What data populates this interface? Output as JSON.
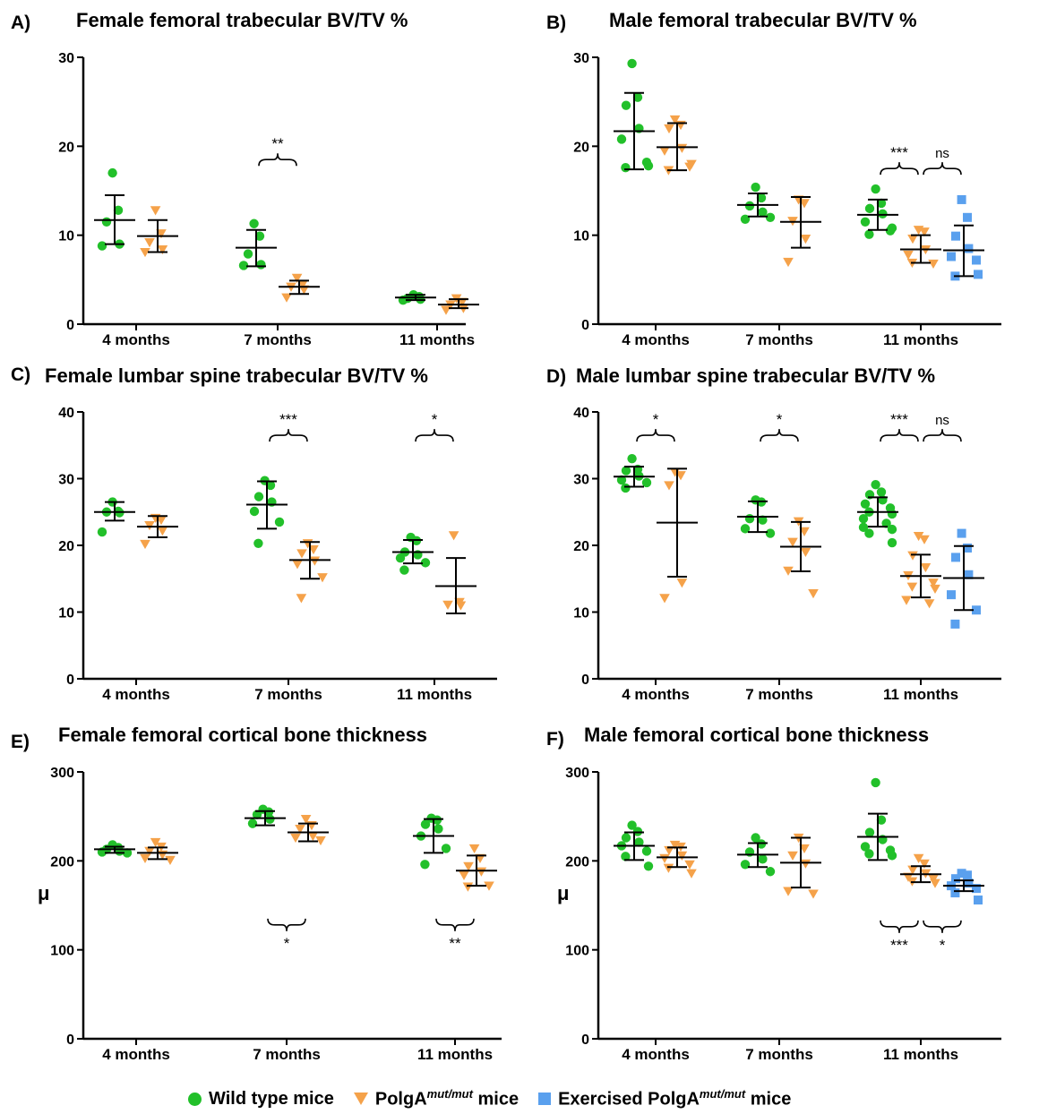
{
  "colors": {
    "wild_type": "#22c02a",
    "polga": "#f5a24a",
    "exercised": "#5aa0ee"
  },
  "legend": {
    "items": [
      {
        "key": "wild_type",
        "marker": "circle",
        "label_a": "Wild type mice",
        "sup": "",
        "label_b": ""
      },
      {
        "key": "polga",
        "marker": "triangle",
        "label_a": "PolgA",
        "sup": "mut/mut",
        "label_b": " mice"
      },
      {
        "key": "exercised",
        "marker": "square",
        "label_a": "Exercised PolgA",
        "sup": "mut/mut",
        "label_b": " mice"
      }
    ]
  },
  "chart_data": [
    {
      "panel": "A)",
      "type": "scatter",
      "title": "Female femoral trabecular BV/TV %",
      "ylabel": "",
      "ylim": [
        0,
        30
      ],
      "yticks": [
        0,
        10,
        20,
        30
      ],
      "categories": [
        "4 months",
        "7 months",
        "11 months"
      ],
      "groups": [
        {
          "category": 0,
          "series": "wild_type",
          "mean": 11.7,
          "sd": [
            9.0,
            14.5
          ],
          "points": [
            17.0,
            12.8,
            11.5,
            9.0,
            8.8
          ]
        },
        {
          "category": 0,
          "series": "polga",
          "mean": 9.9,
          "sd": [
            8.1,
            11.7
          ],
          "points": [
            12.8,
            10.2,
            9.2,
            8.4,
            8.1
          ]
        },
        {
          "category": 1,
          "series": "wild_type",
          "mean": 8.6,
          "sd": [
            6.5,
            10.6
          ],
          "points": [
            11.3,
            9.9,
            7.9,
            6.7,
            6.6
          ]
        },
        {
          "category": 1,
          "series": "polga",
          "mean": 4.2,
          "sd": [
            3.4,
            4.9
          ],
          "points": [
            5.2,
            4.5,
            4.2,
            3.9,
            3.0
          ]
        },
        {
          "category": 2,
          "series": "wild_type",
          "mean": 3.0,
          "sd": [
            2.7,
            3.3
          ],
          "points": [
            3.3,
            3.1,
            2.9,
            2.8,
            2.7
          ]
        },
        {
          "category": 2,
          "series": "polga",
          "mean": 2.2,
          "sd": [
            1.8,
            2.8
          ],
          "points": [
            2.9,
            2.5,
            2.2,
            1.8,
            1.6
          ]
        }
      ],
      "significance": [
        {
          "from": "7 months|wild_type",
          "to": "7 months|polga",
          "label": "**",
          "y": 18.5,
          "position": "above"
        }
      ]
    },
    {
      "panel": "B)",
      "type": "scatter",
      "title": "Male femoral trabecular BV/TV %",
      "ylabel": "",
      "ylim": [
        0,
        30
      ],
      "yticks": [
        0,
        10,
        20,
        30
      ],
      "categories": [
        "4 months",
        "7 months",
        "11 months"
      ],
      "groups": [
        {
          "category": 0,
          "series": "wild_type",
          "mean": 21.7,
          "sd": [
            17.4,
            26.0
          ],
          "points": [
            29.3,
            25.5,
            24.6,
            22.0,
            20.8,
            18.2,
            17.6,
            17.8
          ]
        },
        {
          "category": 0,
          "series": "polga",
          "mean": 19.9,
          "sd": [
            17.3,
            22.6
          ],
          "points": [
            23.0,
            22.4,
            22.0,
            19.8,
            19.5,
            17.7,
            17.3,
            18.0
          ]
        },
        {
          "category": 1,
          "series": "wild_type",
          "mean": 13.4,
          "sd": [
            12.1,
            14.7
          ],
          "points": [
            15.4,
            14.2,
            13.3,
            12.6,
            11.8,
            12.0
          ]
        },
        {
          "category": 1,
          "series": "polga",
          "mean": 11.5,
          "sd": [
            8.6,
            14.3
          ],
          "points": [
            14.0,
            13.6,
            11.6,
            9.6,
            7.0
          ]
        },
        {
          "category": 2,
          "series": "wild_type",
          "mean": 12.3,
          "sd": [
            10.6,
            14.0
          ],
          "points": [
            15.2,
            13.6,
            13.0,
            12.4,
            11.5,
            10.5,
            10.1,
            10.8
          ]
        },
        {
          "category": 2,
          "series": "polga",
          "mean": 8.4,
          "sd": [
            6.9,
            10.0
          ],
          "points": [
            10.6,
            10.4,
            9.6,
            8.4,
            7.8,
            6.8,
            6.9
          ]
        },
        {
          "category": 2,
          "series": "exercised",
          "mean": 8.3,
          "sd": [
            5.4,
            11.1
          ],
          "points": [
            14.0,
            12.0,
            9.9,
            8.5,
            7.6,
            7.2,
            5.4,
            5.6
          ]
        }
      ],
      "significance": [
        {
          "from": "11 months|wild_type",
          "to": "11 months|polga",
          "label": "***",
          "y": 17.5,
          "position": "above"
        },
        {
          "from": "11 months|polga",
          "to": "11 months|exercised",
          "label": "ns",
          "y": 17.5,
          "position": "above"
        }
      ]
    },
    {
      "panel": "C)",
      "type": "scatter",
      "title": "Female lumbar spine trabecular BV/TV %",
      "ylabel": "",
      "ylim": [
        0,
        40
      ],
      "yticks": [
        0,
        10,
        20,
        30,
        40
      ],
      "categories": [
        "4 months",
        "7 months",
        "11 months"
      ],
      "groups": [
        {
          "category": 0,
          "series": "wild_type",
          "mean": 25.0,
          "sd": [
            23.7,
            26.5
          ],
          "points": [
            26.5,
            25.1,
            25.0,
            24.9,
            22.0
          ]
        },
        {
          "category": 0,
          "series": "polga",
          "mean": 22.8,
          "sd": [
            21.2,
            24.4
          ],
          "points": [
            24.1,
            23.8,
            23.0,
            22.2,
            20.2
          ]
        },
        {
          "category": 1,
          "series": "wild_type",
          "mean": 26.1,
          "sd": [
            22.5,
            29.6
          ],
          "points": [
            29.7,
            29.0,
            27.3,
            26.5,
            25.1,
            23.5,
            20.3
          ]
        },
        {
          "category": 1,
          "series": "polga",
          "mean": 17.8,
          "sd": [
            15.0,
            20.5
          ],
          "points": [
            20.3,
            19.4,
            18.8,
            17.7,
            17.2,
            15.2,
            12.1
          ]
        },
        {
          "category": 2,
          "series": "wild_type",
          "mean": 19.0,
          "sd": [
            17.3,
            20.8
          ],
          "points": [
            21.2,
            20.7,
            19.0,
            18.6,
            18.1,
            17.4,
            16.3
          ]
        },
        {
          "category": 2,
          "series": "polga",
          "mean": 13.9,
          "sd": [
            9.8,
            18.1
          ],
          "points": [
            21.5,
            11.5,
            11.1,
            11.0
          ]
        }
      ],
      "significance": [
        {
          "from": "7 months|wild_type",
          "to": "7 months|polga",
          "label": "***",
          "y": 36.5,
          "position": "above"
        },
        {
          "from": "11 months|wild_type",
          "to": "11 months|polga",
          "label": "*",
          "y": 36.5,
          "position": "above"
        }
      ]
    },
    {
      "panel": "D)",
      "type": "scatter",
      "title": "Male lumbar spine trabecular BV/TV %",
      "ylabel": "",
      "ylim": [
        0,
        40
      ],
      "yticks": [
        0,
        10,
        20,
        30,
        40
      ],
      "categories": [
        "4 months",
        "7 months",
        "11 months"
      ],
      "groups": [
        {
          "category": 0,
          "series": "wild_type",
          "mean": 30.3,
          "sd": [
            28.8,
            31.8
          ],
          "points": [
            33.0,
            31.4,
            31.2,
            30.4,
            29.8,
            29.4,
            28.6
          ]
        },
        {
          "category": 0,
          "series": "polga",
          "mean": 23.4,
          "sd": [
            15.3,
            31.5
          ],
          "points": [
            31.0,
            30.5,
            29.0,
            14.4,
            12.1
          ]
        },
        {
          "category": 1,
          "series": "wild_type",
          "mean": 24.3,
          "sd": [
            22.0,
            26.6
          ],
          "points": [
            26.8,
            26.5,
            24.0,
            23.8,
            22.5,
            21.8
          ]
        },
        {
          "category": 1,
          "series": "polga",
          "mean": 19.8,
          "sd": [
            16.1,
            23.5
          ],
          "points": [
            23.6,
            22.1,
            20.5,
            19.0,
            16.2,
            12.8
          ]
        },
        {
          "category": 2,
          "series": "wild_type",
          "mean": 25.0,
          "sd": [
            22.8,
            27.2
          ],
          "points": [
            29.1,
            28.0,
            27.6,
            26.8,
            26.2,
            25.6,
            25.0,
            24.7,
            24.0,
            23.3,
            22.7,
            22.4,
            21.8,
            20.4
          ]
        },
        {
          "category": 2,
          "series": "polga",
          "mean": 15.4,
          "sd": [
            12.2,
            18.6
          ],
          "points": [
            21.4,
            20.9,
            18.5,
            16.7,
            15.5,
            14.4,
            13.8,
            13.5,
            11.8,
            11.3
          ]
        },
        {
          "category": 2,
          "series": "exercised",
          "mean": 15.1,
          "sd": [
            10.3,
            19.9
          ],
          "points": [
            21.8,
            19.6,
            18.2,
            15.6,
            12.6,
            10.3,
            8.2
          ]
        }
      ],
      "significance": [
        {
          "from": "4 months|wild_type",
          "to": "4 months|polga",
          "label": "*",
          "y": 36.5,
          "position": "above"
        },
        {
          "from": "7 months|wild_type",
          "to": "7 months|polga",
          "label": "*",
          "y": 36.5,
          "position": "above"
        },
        {
          "from": "11 months|wild_type",
          "to": "11 months|polga",
          "label": "***",
          "y": 36.5,
          "position": "above"
        },
        {
          "from": "11 months|polga",
          "to": "11 months|exercised",
          "label": "ns",
          "y": 36.5,
          "position": "above"
        }
      ]
    },
    {
      "panel": "E)",
      "type": "scatter",
      "title": "Female femoral cortical bone thickness",
      "ylabel": "μ",
      "ylim": [
        0,
        300
      ],
      "yticks": [
        0,
        100,
        200,
        300
      ],
      "categories": [
        "4 months",
        "7 months",
        "11 months"
      ],
      "groups": [
        {
          "category": 0,
          "series": "wild_type",
          "mean": 213,
          "sd": [
            209,
            216
          ],
          "points": [
            218,
            215,
            213,
            211,
            210,
            209
          ]
        },
        {
          "category": 0,
          "series": "polga",
          "mean": 209,
          "sd": [
            202,
            215
          ],
          "points": [
            221,
            216,
            211,
            207,
            203,
            201
          ]
        },
        {
          "category": 1,
          "series": "wild_type",
          "mean": 248,
          "sd": [
            240,
            256
          ],
          "points": [
            258,
            255,
            252,
            247,
            242
          ]
        },
        {
          "category": 1,
          "series": "polga",
          "mean": 232,
          "sd": [
            222,
            242
          ],
          "points": [
            247,
            240,
            236,
            228,
            226,
            223
          ]
        },
        {
          "category": 2,
          "series": "wild_type",
          "mean": 228,
          "sd": [
            209,
            247
          ],
          "points": [
            248,
            246,
            241,
            236,
            228,
            214,
            196
          ]
        },
        {
          "category": 2,
          "series": "polga",
          "mean": 189,
          "sd": [
            172,
            206
          ],
          "points": [
            214,
            203,
            194,
            188,
            184,
            172,
            171
          ]
        }
      ],
      "significance": [
        {
          "from": "7 months|wild_type",
          "to": "7 months|polga",
          "label": "*",
          "y": 128,
          "position": "below"
        },
        {
          "from": "11 months|wild_type",
          "to": "11 months|polga",
          "label": "**",
          "y": 128,
          "position": "below"
        }
      ]
    },
    {
      "panel": "F)",
      "type": "scatter",
      "title": "Male femoral cortical bone thickness",
      "ylabel": "μ",
      "ylim": [
        0,
        300
      ],
      "yticks": [
        0,
        100,
        200,
        300
      ],
      "categories": [
        "4 months",
        "7 months",
        "11 months"
      ],
      "groups": [
        {
          "category": 0,
          "series": "wild_type",
          "mean": 217,
          "sd": [
            201,
            232
          ],
          "points": [
            240,
            233,
            226,
            221,
            217,
            211,
            205,
            194
          ]
        },
        {
          "category": 0,
          "series": "polga",
          "mean": 204,
          "sd": [
            193,
            215
          ],
          "points": [
            218,
            216,
            212,
            206,
            203,
            196,
            192,
            186
          ]
        },
        {
          "category": 1,
          "series": "wild_type",
          "mean": 207,
          "sd": [
            193,
            220
          ],
          "points": [
            226,
            219,
            210,
            202,
            196,
            188
          ]
        },
        {
          "category": 1,
          "series": "polga",
          "mean": 198,
          "sd": [
            170,
            226
          ],
          "points": [
            226,
            214,
            206,
            197,
            166,
            163
          ]
        },
        {
          "category": 2,
          "series": "wild_type",
          "mean": 227,
          "sd": [
            201,
            253
          ],
          "points": [
            288,
            246,
            232,
            224,
            216,
            212,
            208,
            206
          ]
        },
        {
          "category": 2,
          "series": "polga",
          "mean": 185,
          "sd": [
            176,
            194
          ],
          "points": [
            203,
            197,
            190,
            186,
            182,
            180,
            177,
            175
          ]
        },
        {
          "category": 2,
          "series": "exercised",
          "mean": 172,
          "sd": [
            166,
            178
          ],
          "points": [
            186,
            184,
            180,
            175,
            172,
            169,
            164,
            156
          ]
        }
      ],
      "significance": [
        {
          "from": "11 months|wild_type",
          "to": "11 months|polga",
          "label": "***",
          "y": 126,
          "position": "below"
        },
        {
          "from": "11 months|polga",
          "to": "11 months|exercised",
          "label": "*",
          "y": 126,
          "position": "below"
        }
      ]
    }
  ]
}
